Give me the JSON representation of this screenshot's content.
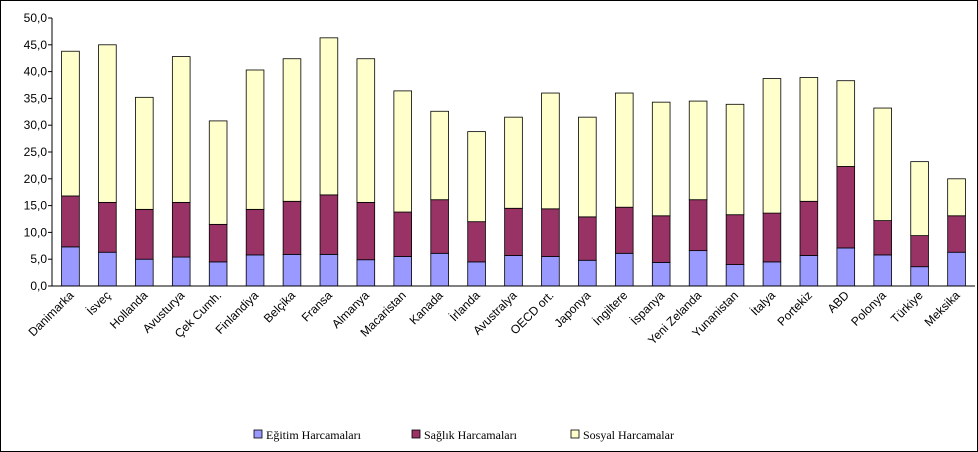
{
  "chart_data": {
    "type": "stacked_bar",
    "categories": [
      "Danimarka",
      "İsveç",
      "Hollanda",
      "Avusturya",
      "Çek Cumh.",
      "Finlandiya",
      "Belçika",
      "Fransa",
      "Almanya",
      "Macaristan",
      "Kanada",
      "İrlanda",
      "Avustralya",
      "OECD ort.",
      "Japonya",
      "İngiltere",
      "İspanya",
      "Yeni Zelanda",
      "Yunanistan",
      "İtalya",
      "Portekiz",
      "ABD",
      "Polonya",
      "Türkiye",
      "Meksika"
    ],
    "series": [
      {
        "name": "Eğitim Harcamaları",
        "color": "#9999ff",
        "values": [
          7.3,
          6.3,
          5.0,
          5.4,
          4.5,
          5.8,
          5.9,
          5.9,
          4.9,
          5.5,
          6.1,
          4.5,
          5.7,
          5.5,
          4.8,
          6.1,
          4.4,
          6.6,
          4.0,
          4.5,
          5.7,
          7.1,
          5.8,
          3.6,
          6.3
        ]
      },
      {
        "name": "Sağlık Harcamaları",
        "color": "#993366",
        "values": [
          9.5,
          9.3,
          9.3,
          10.2,
          7.0,
          8.5,
          9.9,
          11.1,
          10.7,
          8.3,
          10.0,
          7.5,
          8.8,
          8.9,
          8.1,
          8.6,
          8.7,
          9.5,
          9.3,
          9.1,
          10.1,
          15.2,
          6.4,
          5.8,
          6.8
        ]
      },
      {
        "name": "Sosyal Harcamalar",
        "color": "#ffffcc",
        "values": [
          27.0,
          29.4,
          20.9,
          27.2,
          19.3,
          26.0,
          26.6,
          29.3,
          26.8,
          22.6,
          16.5,
          16.8,
          17.0,
          21.6,
          18.6,
          21.3,
          21.2,
          18.4,
          20.6,
          25.1,
          23.1,
          16.0,
          21.0,
          13.8,
          6.9
        ]
      }
    ],
    "ylim": [
      0,
      50
    ],
    "yticks": [
      {
        "value": 0,
        "label": "0,0"
      },
      {
        "value": 5,
        "label": "5,0"
      },
      {
        "value": 10,
        "label": "10,0"
      },
      {
        "value": 15,
        "label": "15,0"
      },
      {
        "value": 20,
        "label": "20,0"
      },
      {
        "value": 25,
        "label": "25,0"
      },
      {
        "value": 30,
        "label": "30,0"
      },
      {
        "value": 35,
        "label": "35,0"
      },
      {
        "value": 40,
        "label": "40,0"
      },
      {
        "value": 45,
        "label": "45,0"
      },
      {
        "value": 50,
        "label": "50,0"
      }
    ],
    "legend": "bottom"
  }
}
